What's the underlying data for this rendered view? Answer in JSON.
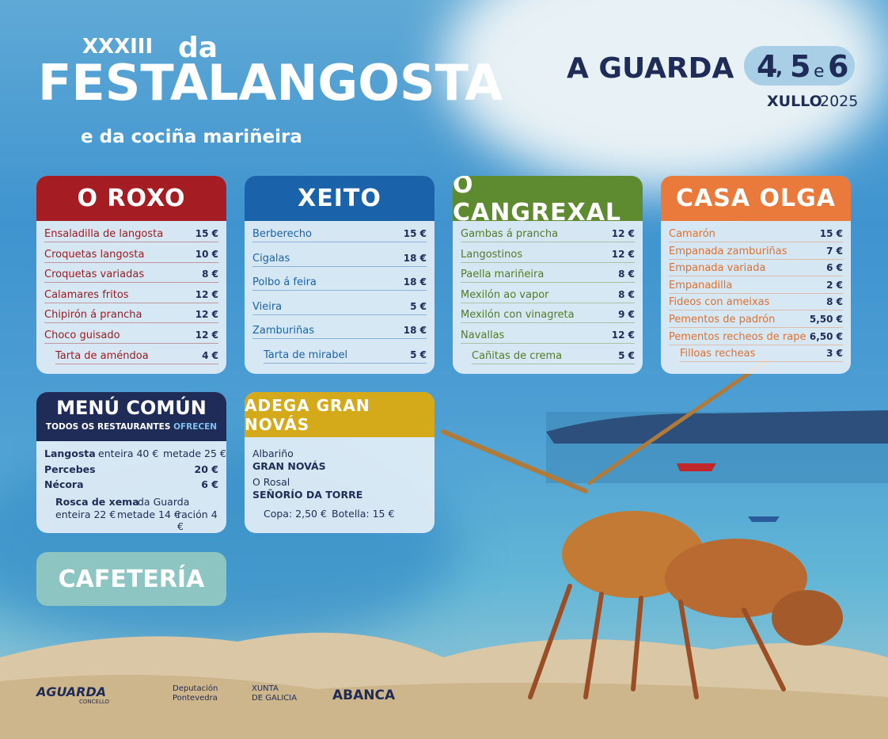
{
  "header": {
    "edition": "XXXIII",
    "da": "da",
    "title_1": "FESTA",
    "title_2": "LANGOSTA",
    "subtitle": "e da cociña mariñeira",
    "place": "A GUARDA",
    "day_1": "4",
    "comma": ",",
    "day_2": "5",
    "and": "e",
    "day_3": "6",
    "month": "XULLO",
    "year": "2025"
  },
  "restaurants": [
    {
      "name": "O ROXO",
      "color": "#a51d23",
      "text_color": "#9b1c22",
      "items": [
        {
          "dish": "Ensaladilla de langosta",
          "price": "15 €"
        },
        {
          "dish": "Croquetas langosta",
          "price": "10 €"
        },
        {
          "dish": "Croquetas variadas",
          "price": "8 €"
        },
        {
          "dish": "Calamares fritos",
          "price": "12 €"
        },
        {
          "dish": "Chipirón á prancha",
          "price": "12 €"
        },
        {
          "dish": "Choco guisado",
          "price": "12 €"
        },
        {
          "dish": "Tarta de améndoa",
          "price": "4 €"
        }
      ]
    },
    {
      "name": "XEITO",
      "color": "#1a63ab",
      "text_color": "#1a63ab",
      "items": [
        {
          "dish": "Berberecho",
          "price": "15 €"
        },
        {
          "dish": "Cigalas",
          "price": "18 €"
        },
        {
          "dish": "Polbo á feira",
          "price": "18 €"
        },
        {
          "dish": "Vieira",
          "price": "5 €"
        },
        {
          "dish": "Zamburiñas",
          "price": "18 €"
        },
        {
          "dish": "Tarta de mirabel",
          "price": "5 €"
        }
      ]
    },
    {
      "name": "O CANGREXAL",
      "color": "#5e8b2f",
      "text_color": "#4f7d24",
      "items": [
        {
          "dish": "Gambas á prancha",
          "price": "12 €"
        },
        {
          "dish": "Langostinos",
          "price": "12 €"
        },
        {
          "dish": "Paella mariñeira",
          "price": "8 €"
        },
        {
          "dish": "Mexilón ao vapor",
          "price": "8 €"
        },
        {
          "dish": "Mexilón con vinagreta",
          "price": "9 €"
        },
        {
          "dish": "Navallas",
          "price": "12 €"
        },
        {
          "dish": "Cañitas de crema",
          "price": "5 €"
        }
      ]
    },
    {
      "name": "CASA OLGA",
      "color": "#e97a3b",
      "text_color": "#e0702f",
      "items": [
        {
          "dish": "Camarón",
          "price": "15 €"
        },
        {
          "dish": "Empanada zamburiñas",
          "price": "7 €"
        },
        {
          "dish": "Empanada variada",
          "price": "6 €"
        },
        {
          "dish": "Empanadilla",
          "price": "2 €"
        },
        {
          "dish": "Fideos con ameixas",
          "price": "8 €"
        },
        {
          "dish": "Pementos de padrón",
          "price": "5,50 €"
        },
        {
          "dish": "Pementos recheos de rape",
          "price": "6,50 €"
        },
        {
          "dish": "Filloas recheas",
          "price": "3 €"
        }
      ]
    }
  ],
  "menu_comun": {
    "title": "MENÚ COMÚN",
    "subtitle": "TODOS OS RESTAURANTES",
    "subtitle_2": "OFRECEN",
    "langosta": "Langosta",
    "langosta_enteira": "enteira 40 €",
    "langosta_metade": "metade 25 €",
    "percebes": "Percebes",
    "percebes_price": "20 €",
    "necora": "Nécora",
    "necora_price": "6 €",
    "rosca": "Rosca de xema",
    "rosca_origin": "da Guarda",
    "rosca_enteira": "enteira 22 €",
    "rosca_metade": "metade 14 €",
    "rosca_racion": "ración 4 €"
  },
  "adega": {
    "title": "ADEGA GRAN NOVÁS",
    "line_1": "Albariño",
    "line_2": "GRAN NOVÁS",
    "line_3": "O Rosal",
    "line_4": "SEÑORÍO DA TORRE",
    "copa": "Copa: 2,50 €",
    "botella": "Botella: 15 €"
  },
  "cafeteria": {
    "title": "CAFETERÍA"
  },
  "footer": {
    "aguarda": "AGUARDA",
    "concello": "CONCELLO",
    "deputacion_1": "Deputación",
    "deputacion_2": "Pontevedra",
    "xunta_1": "XUNTA",
    "xunta_2": "DE GALICIA",
    "abanca": "ABANCA"
  }
}
